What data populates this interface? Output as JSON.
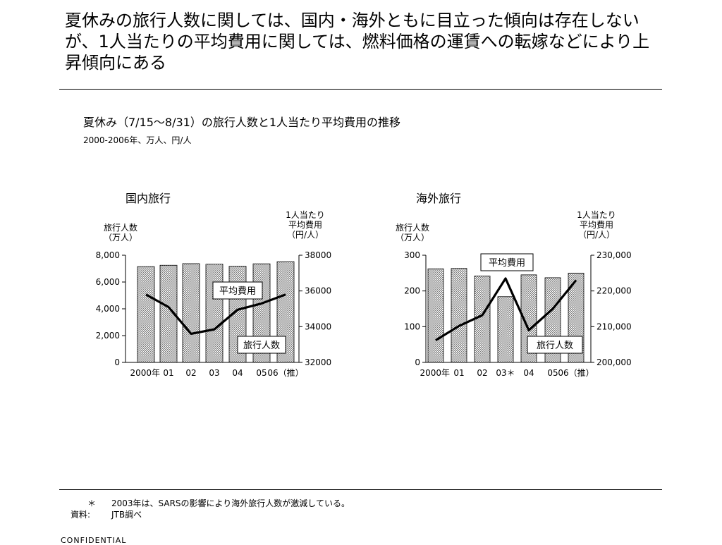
{
  "headline": "夏休みの旅行人数に関しては、国内・海外ともに目立った傾向は存在しないが、1人当たりの平均費用に関しては、燃料価格の運賃への転嫁などにより上昇傾向にある",
  "subtitle": "夏休み（7/15〜8/31）の旅行人数と1人当たり平均費用の推移",
  "subnote": "2000-2006年、万人、円/人",
  "footnotes": {
    "mark": "＊",
    "sars_note": "2003年は、SARSの影響により海外旅行人数が激減している。",
    "source_label": "資料:",
    "source": "JTB調べ"
  },
  "stamp": "CONFIDENTIAL",
  "colors": {
    "bar_fill": "#dcdcdc",
    "line": "#000000"
  },
  "chart_data": [
    {
      "type": "bar",
      "title": "国内旅行",
      "ylabel_left": [
        "旅行人数",
        "（万人）"
      ],
      "ylabel_right": [
        "1人当たり",
        "平均費用",
        "（円/人）"
      ],
      "categories": [
        "2000年",
        "01",
        "02",
        "03",
        "04",
        "05",
        "06（推）"
      ],
      "ylim_left": [
        0,
        8000
      ],
      "yticks_left": [
        0,
        2000,
        4000,
        6000,
        8000
      ],
      "ytick_labels_left": [
        "0",
        "2,000",
        "4,000",
        "6,000",
        "8,000"
      ],
      "ylim_right": [
        32000,
        38000
      ],
      "yticks_right": [
        32000,
        34000,
        36000,
        38000
      ],
      "ytick_labels_right": [
        "32000",
        "34000",
        "36000",
        "38000"
      ],
      "series": [
        {
          "name": "旅行人数",
          "kind": "bar",
          "axis": "left",
          "values": [
            7150,
            7250,
            7370,
            7330,
            7180,
            7360,
            7520
          ]
        },
        {
          "name": "平均費用",
          "kind": "line",
          "axis": "right",
          "values": [
            35800,
            35100,
            33600,
            33850,
            34950,
            35300,
            35800
          ]
        }
      ],
      "grid": false
    },
    {
      "type": "bar",
      "title": "海外旅行",
      "ylabel_left": [
        "旅行人数",
        "（万人）"
      ],
      "ylabel_right": [
        "1人当たり",
        "平均費用",
        "（円/人）"
      ],
      "categories": [
        "2000年",
        "01",
        "02",
        "03＊",
        "04",
        "05",
        "06（推）"
      ],
      "ylim_left": [
        0,
        300
      ],
      "yticks_left": [
        0,
        100,
        200,
        300
      ],
      "ytick_labels_left": [
        "0",
        "100",
        "200",
        "300"
      ],
      "ylim_right": [
        200000,
        230000
      ],
      "yticks_right": [
        200000,
        210000,
        220000,
        230000
      ],
      "ytick_labels_right": [
        "200,000",
        "210,000",
        "220,000",
        "230,000"
      ],
      "series": [
        {
          "name": "旅行人数",
          "kind": "bar",
          "axis": "left",
          "values": [
            262,
            263,
            242,
            184,
            245,
            237,
            250
          ]
        },
        {
          "name": "平均費用",
          "kind": "line",
          "axis": "right",
          "values": [
            206200,
            210200,
            213200,
            223500,
            209000,
            215000,
            223000
          ]
        }
      ],
      "grid": false
    }
  ]
}
